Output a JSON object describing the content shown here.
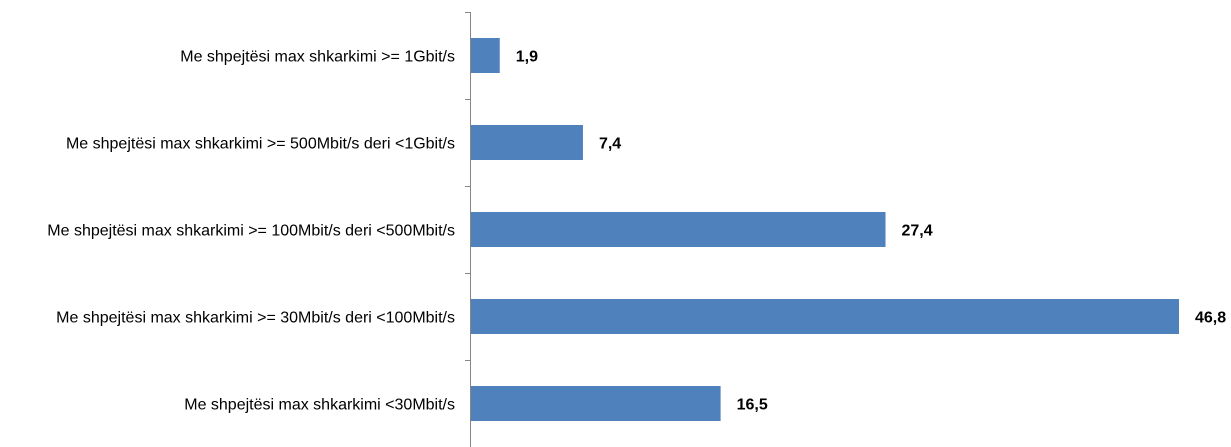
{
  "chart_data": {
    "type": "bar",
    "orientation": "horizontal",
    "categories": [
      "Me shpejtësi max shkarkimi >= 1Gbit/s",
      "Me shpejtësi max shkarkimi >= 500Mbit/s deri <1Gbit/s",
      "Me shpejtësi max shkarkimi >= 100Mbit/s deri <500Mbit/s",
      "Me shpejtësi max shkarkimi >= 30Mbit/s deri <100Mbit/s",
      "Me shpejtësi max shkarkimi <30Mbit/s"
    ],
    "values": [
      1.9,
      7.4,
      27.4,
      46.8,
      16.5
    ],
    "data_labels": [
      "1,9",
      "7,4",
      "27,4",
      "46,8",
      "16,5"
    ],
    "xlim": [
      0,
      46.8
    ],
    "grid": false,
    "legend": "none",
    "colors": {
      "bar": "#4f81bd",
      "axis": "#868686",
      "text": "#000000"
    }
  }
}
